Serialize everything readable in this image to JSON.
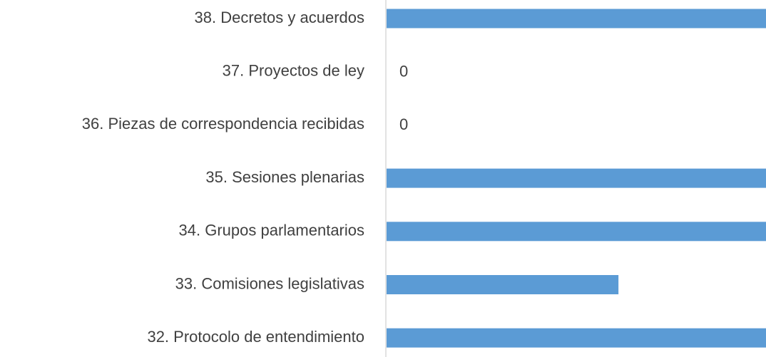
{
  "chart_data": {
    "type": "barh",
    "categories": [
      "38. Decretos y acuerdos",
      "37. Proyectos de ley",
      "36. Piezas de correspondencia recibidas",
      "35. Sesiones plenarias",
      "34. Grupos parlamentarios",
      "33. Comisiones legislativas",
      "32. Protocolo de entendimiento"
    ],
    "values": [
      1,
      0,
      0,
      1,
      1,
      0.61,
      1
    ],
    "color": "#5b9bd5",
    "xlim": [
      0,
      1
    ]
  }
}
